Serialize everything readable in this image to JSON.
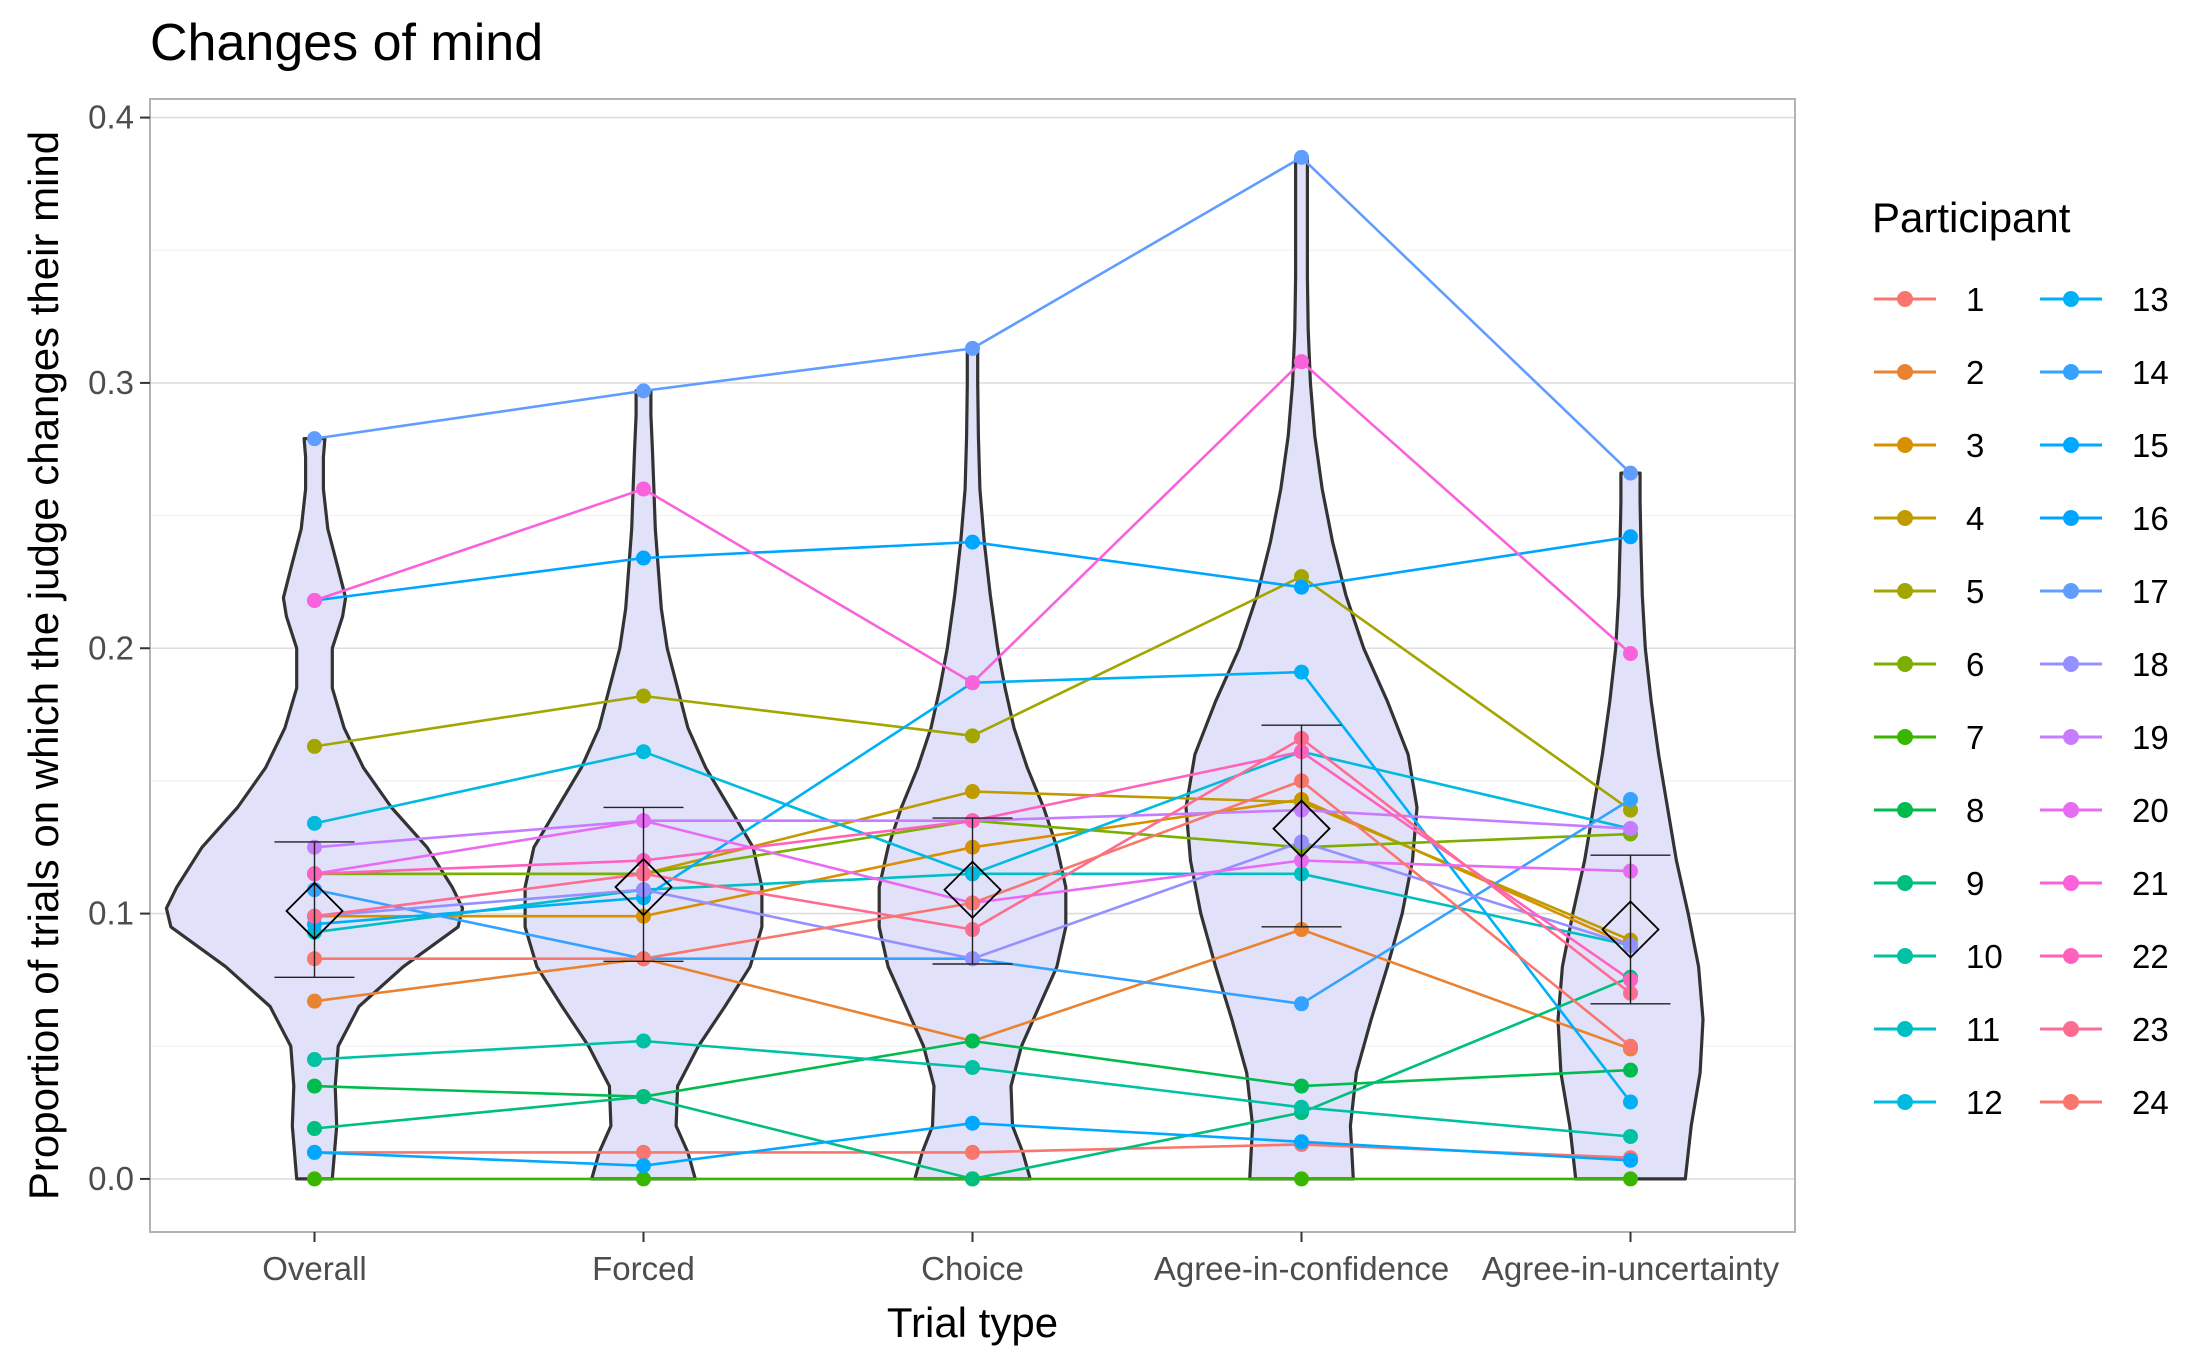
{
  "chart_data": {
    "type": "line",
    "title": "Changes of mind",
    "xlabel": "Trial type",
    "ylabel": "Proportion of trials on which the judge changes their mind",
    "categories": [
      "Overall",
      "Forced",
      "Choice",
      "Agree-in-confidence",
      "Agree-in-uncertainty"
    ],
    "ylim": [
      -0.02,
      0.407
    ],
    "yticks": [
      "0.0",
      "0.1",
      "0.2",
      "0.3",
      "0.4"
    ],
    "grid": true,
    "legend": {
      "title": "Participant",
      "position": "right",
      "columns": 2
    },
    "series": [
      {
        "name": "1",
        "color": "#F8766D",
        "values": [
          0.01,
          0.01,
          0.01,
          0.013,
          0.008
        ]
      },
      {
        "name": "2",
        "color": "#EA8331",
        "values": [
          0.067,
          0.083,
          0.052,
          0.094,
          0.049
        ]
      },
      {
        "name": "3",
        "color": "#D89000",
        "values": [
          0.099,
          0.099,
          0.125,
          0.143,
          0.088
        ]
      },
      {
        "name": "4",
        "color": "#C09B00",
        "values": [
          0.115,
          0.115,
          0.146,
          0.142,
          0.09
        ]
      },
      {
        "name": "5",
        "color": "#A3A500",
        "values": [
          0.163,
          0.182,
          0.167,
          0.227,
          0.139
        ]
      },
      {
        "name": "6",
        "color": "#7CAE00",
        "values": [
          0.115,
          0.115,
          0.135,
          0.125,
          0.13
        ]
      },
      {
        "name": "7",
        "color": "#39B600",
        "values": [
          0.0,
          0.0,
          0.0,
          0.0,
          0.0
        ]
      },
      {
        "name": "8",
        "color": "#00BB4E",
        "values": [
          0.035,
          0.031,
          0.052,
          0.035,
          0.041
        ]
      },
      {
        "name": "9",
        "color": "#00BF7D",
        "values": [
          0.019,
          0.031,
          0.0,
          0.025,
          0.076
        ]
      },
      {
        "name": "10",
        "color": "#00C1A3",
        "values": [
          0.045,
          0.052,
          0.042,
          0.027,
          0.016
        ]
      },
      {
        "name": "11",
        "color": "#00BFC4",
        "values": [
          0.093,
          0.109,
          0.115,
          0.115,
          0.088
        ]
      },
      {
        "name": "12",
        "color": "#00BAE0",
        "values": [
          0.134,
          0.161,
          0.115,
          0.161,
          0.132
        ]
      },
      {
        "name": "13",
        "color": "#00B0F6",
        "values": [
          0.096,
          0.106,
          0.187,
          0.191,
          0.029
        ]
      },
      {
        "name": "14",
        "color": "#35A2FF",
        "values": [
          0.109,
          0.083,
          0.083,
          0.066,
          0.143
        ]
      },
      {
        "name": "15",
        "color": "#00A9FF",
        "values": [
          0.01,
          0.005,
          0.021,
          0.014,
          0.007
        ]
      },
      {
        "name": "16",
        "color": "#00A5FF",
        "values": [
          0.218,
          0.234,
          0.24,
          0.223,
          0.242
        ]
      },
      {
        "name": "17",
        "color": "#619CFF",
        "values": [
          0.279,
          0.297,
          0.313,
          0.385,
          0.266
        ]
      },
      {
        "name": "18",
        "color": "#9590FF",
        "values": [
          0.099,
          0.109,
          0.083,
          0.127,
          0.088
        ]
      },
      {
        "name": "19",
        "color": "#C77CFF",
        "values": [
          0.125,
          0.135,
          0.135,
          0.139,
          0.132
        ]
      },
      {
        "name": "20",
        "color": "#E76BF3",
        "values": [
          0.115,
          0.135,
          0.104,
          0.12,
          0.116
        ]
      },
      {
        "name": "21",
        "color": "#FA62DB",
        "values": [
          0.218,
          0.26,
          0.187,
          0.308,
          0.198
        ]
      },
      {
        "name": "22",
        "color": "#FF62BC",
        "values": [
          0.115,
          0.12,
          0.135,
          0.161,
          0.075
        ]
      },
      {
        "name": "23",
        "color": "#FF6C91",
        "values": [
          0.099,
          0.115,
          0.094,
          0.166,
          0.07
        ]
      },
      {
        "name": "24",
        "color": "#F8766D",
        "values": [
          0.083,
          0.083,
          0.104,
          0.15,
          0.05
        ]
      }
    ],
    "mean": [
      0.101,
      0.11,
      0.109,
      0.132,
      0.094
    ],
    "error_bar": [
      [
        0.076,
        0.127
      ],
      [
        0.082,
        0.14
      ],
      [
        0.081,
        0.136
      ],
      [
        0.095,
        0.171
      ],
      [
        0.066,
        0.122
      ]
    ],
    "violin_fill": "#E1E1FA",
    "violin_stroke": "#333333",
    "violin_density": [
      [
        [
          0.0,
          0.12
        ],
        [
          0.02,
          0.15
        ],
        [
          0.035,
          0.14
        ],
        [
          0.05,
          0.16
        ],
        [
          0.065,
          0.3
        ],
        [
          0.08,
          0.6
        ],
        [
          0.095,
          0.97
        ],
        [
          0.102,
          1.0
        ],
        [
          0.11,
          0.93
        ],
        [
          0.125,
          0.76
        ],
        [
          0.14,
          0.52
        ],
        [
          0.155,
          0.33
        ],
        [
          0.17,
          0.2
        ],
        [
          0.185,
          0.12
        ],
        [
          0.2,
          0.12
        ],
        [
          0.212,
          0.19
        ],
        [
          0.219,
          0.21
        ],
        [
          0.23,
          0.16
        ],
        [
          0.245,
          0.09
        ],
        [
          0.26,
          0.06
        ],
        [
          0.272,
          0.06
        ],
        [
          0.279,
          0.07
        ]
      ],
      [
        [
          0.0,
          0.35
        ],
        [
          0.01,
          0.3
        ],
        [
          0.02,
          0.22
        ],
        [
          0.035,
          0.23
        ],
        [
          0.05,
          0.37
        ],
        [
          0.065,
          0.55
        ],
        [
          0.08,
          0.72
        ],
        [
          0.095,
          0.8
        ],
        [
          0.11,
          0.8
        ],
        [
          0.125,
          0.74
        ],
        [
          0.14,
          0.58
        ],
        [
          0.155,
          0.42
        ],
        [
          0.17,
          0.3
        ],
        [
          0.185,
          0.23
        ],
        [
          0.2,
          0.16
        ],
        [
          0.215,
          0.12
        ],
        [
          0.23,
          0.1
        ],
        [
          0.245,
          0.08
        ],
        [
          0.26,
          0.07
        ],
        [
          0.275,
          0.06
        ],
        [
          0.288,
          0.05
        ],
        [
          0.297,
          0.05
        ]
      ],
      [
        [
          0.0,
          0.39
        ],
        [
          0.01,
          0.34
        ],
        [
          0.02,
          0.27
        ],
        [
          0.035,
          0.26
        ],
        [
          0.05,
          0.33
        ],
        [
          0.065,
          0.45
        ],
        [
          0.08,
          0.57
        ],
        [
          0.095,
          0.63
        ],
        [
          0.11,
          0.63
        ],
        [
          0.125,
          0.57
        ],
        [
          0.14,
          0.48
        ],
        [
          0.155,
          0.37
        ],
        [
          0.17,
          0.28
        ],
        [
          0.185,
          0.22
        ],
        [
          0.2,
          0.17
        ],
        [
          0.22,
          0.12
        ],
        [
          0.24,
          0.08
        ],
        [
          0.26,
          0.05
        ],
        [
          0.28,
          0.04
        ],
        [
          0.3,
          0.035
        ],
        [
          0.313,
          0.035
        ]
      ],
      [
        [
          0.0,
          0.35
        ],
        [
          0.02,
          0.33
        ],
        [
          0.04,
          0.37
        ],
        [
          0.06,
          0.47
        ],
        [
          0.08,
          0.58
        ],
        [
          0.1,
          0.68
        ],
        [
          0.12,
          0.75
        ],
        [
          0.14,
          0.78
        ],
        [
          0.16,
          0.72
        ],
        [
          0.18,
          0.58
        ],
        [
          0.2,
          0.42
        ],
        [
          0.22,
          0.3
        ],
        [
          0.24,
          0.21
        ],
        [
          0.26,
          0.14
        ],
        [
          0.28,
          0.09
        ],
        [
          0.3,
          0.06
        ],
        [
          0.32,
          0.045
        ],
        [
          0.34,
          0.04
        ],
        [
          0.36,
          0.04
        ],
        [
          0.385,
          0.04
        ]
      ],
      [
        [
          0.0,
          0.37
        ],
        [
          0.02,
          0.41
        ],
        [
          0.04,
          0.47
        ],
        [
          0.06,
          0.49
        ],
        [
          0.08,
          0.46
        ],
        [
          0.1,
          0.39
        ],
        [
          0.12,
          0.31
        ],
        [
          0.14,
          0.25
        ],
        [
          0.16,
          0.19
        ],
        [
          0.18,
          0.14
        ],
        [
          0.2,
          0.1
        ],
        [
          0.22,
          0.08
        ],
        [
          0.24,
          0.07
        ],
        [
          0.255,
          0.065
        ],
        [
          0.266,
          0.065
        ]
      ]
    ]
  }
}
